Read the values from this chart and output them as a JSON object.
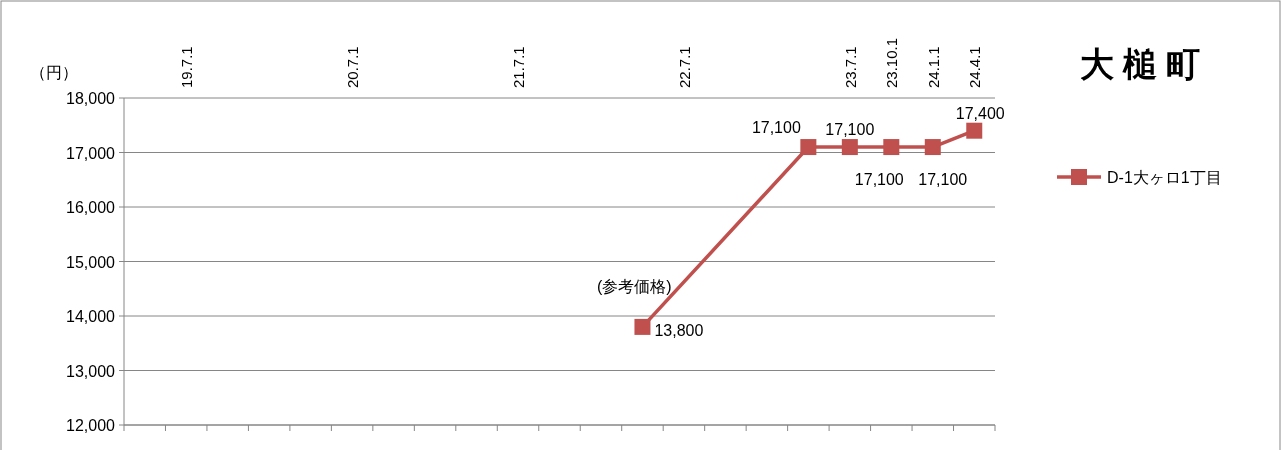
{
  "chart_data": {
    "type": "line",
    "title": "大 槌 町",
    "ylabel": "（円）",
    "categories": [
      null,
      "19.7.1",
      null,
      null,
      null,
      "20.7.1",
      null,
      null,
      null,
      "21.7.1",
      null,
      null,
      null,
      "22.7.1",
      null,
      null,
      null,
      "23.7.1",
      "23.10.1",
      "24.1.1",
      "24.4.1"
    ],
    "series": [
      {
        "name": "D-1大ヶロ1丁目",
        "color": "#c0504d",
        "values": [
          null,
          null,
          null,
          null,
          null,
          null,
          null,
          null,
          null,
          null,
          null,
          null,
          13800,
          null,
          null,
          null,
          17100,
          17100,
          17100,
          17100,
          17400
        ],
        "value_labels": [
          null,
          null,
          null,
          null,
          null,
          null,
          null,
          null,
          null,
          null,
          null,
          null,
          "13,800",
          null,
          null,
          null,
          "17,100",
          "17,100",
          "17,100",
          "17,100",
          "17,400"
        ]
      }
    ],
    "ylim": [
      12000,
      18000
    ],
    "yticks": [
      {
        "value": 12000,
        "label": "12,000"
      },
      {
        "value": 13000,
        "label": "13,000"
      },
      {
        "value": 14000,
        "label": "14,000"
      },
      {
        "value": 15000,
        "label": "15,000"
      },
      {
        "value": 16000,
        "label": "16,000"
      },
      {
        "value": 17000,
        "label": "17,000"
      },
      {
        "value": 18000,
        "label": "18,000"
      }
    ],
    "annotations": [
      "(参考価格)"
    ],
    "grid": "y",
    "legend": "right",
    "marker": "square",
    "line_style": "solid"
  }
}
